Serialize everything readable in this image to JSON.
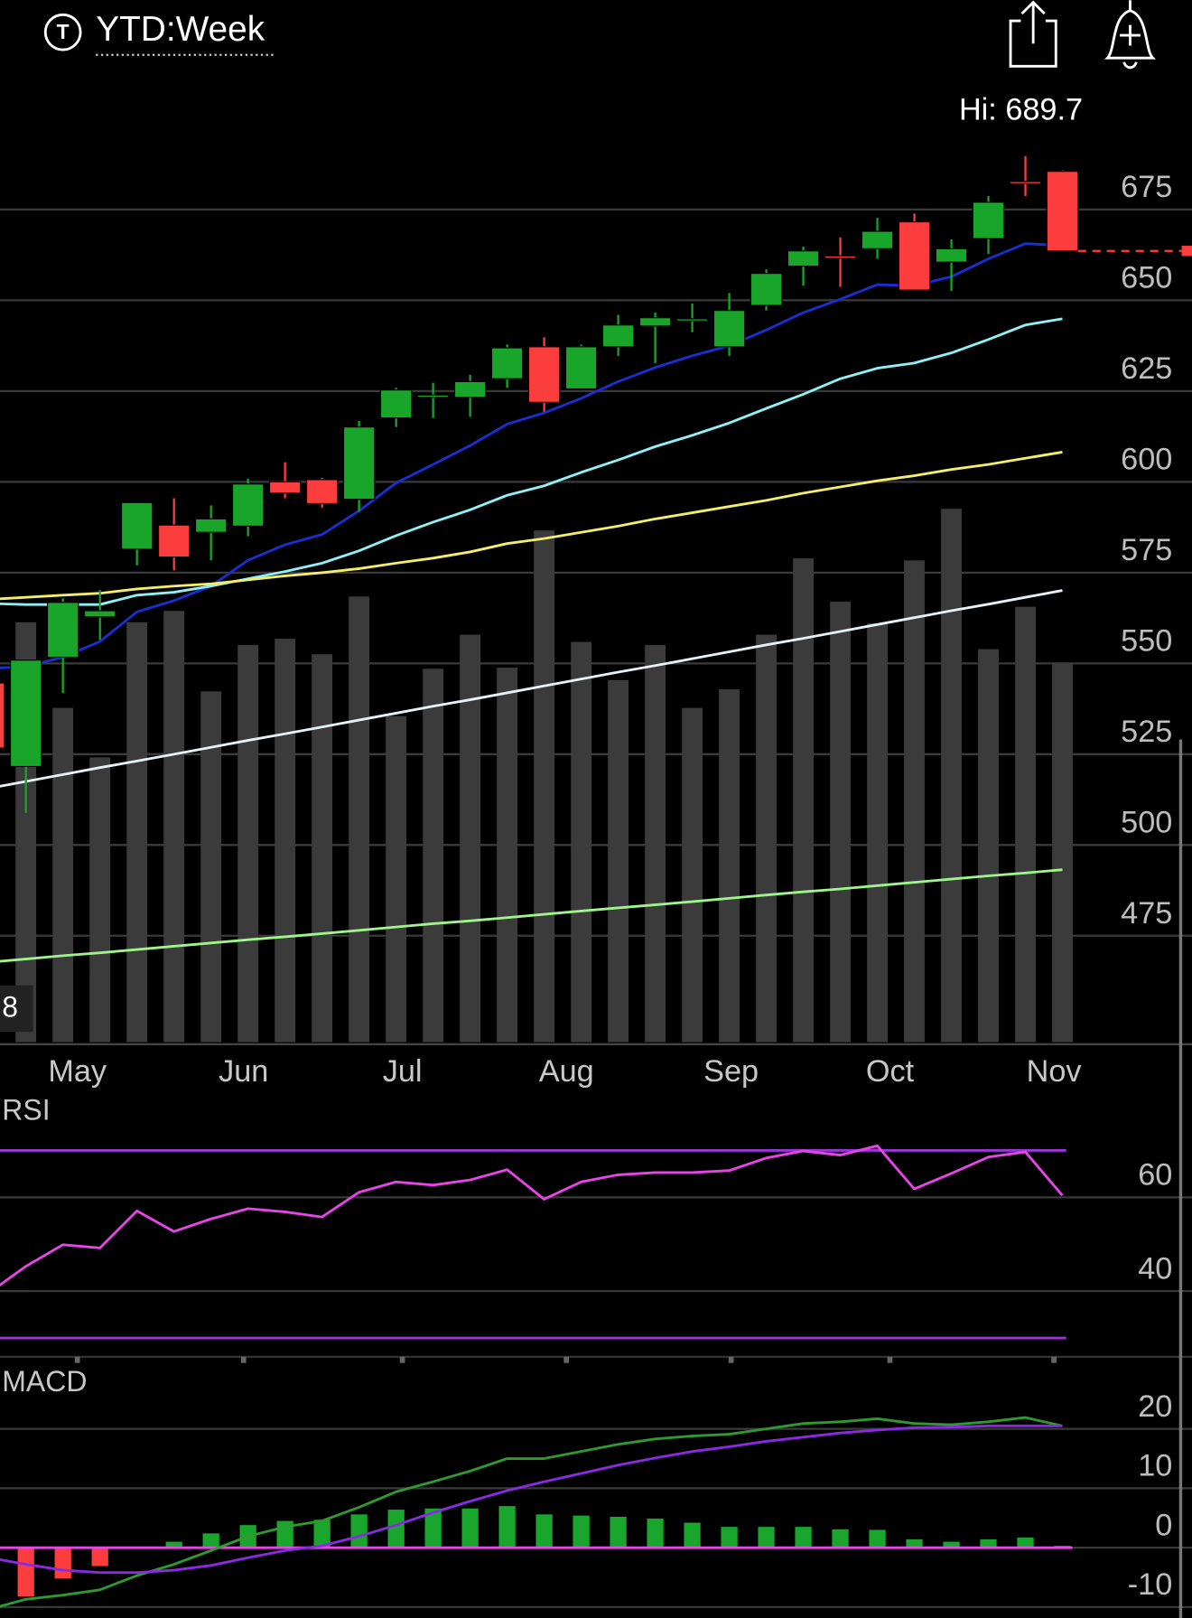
{
  "header": {
    "symbol_icon": "T",
    "title": "YTD:Week"
  },
  "chart_data": [
    {
      "type": "candlestick",
      "x": [
        0,
        1,
        2,
        3,
        4,
        5,
        6,
        7,
        8,
        9,
        10,
        11,
        12,
        13,
        14,
        15,
        16,
        17,
        18,
        19,
        20,
        21,
        22,
        23,
        24,
        25,
        26,
        27,
        28,
        29
      ],
      "xlim": [
        0.3,
        32.5
      ],
      "xticks": [
        {
          "value": 2.39,
          "label": "May"
        },
        {
          "value": 6.88,
          "label": "Jun"
        },
        {
          "value": 11.17,
          "label": "Jul"
        },
        {
          "value": 15.6,
          "label": "Aug"
        },
        {
          "value": 20.05,
          "label": "Sep"
        },
        {
          "value": 24.34,
          "label": "Oct"
        },
        {
          "value": 28.77,
          "label": "Nov"
        }
      ],
      "ylim": [
        445.7,
        709.9
      ],
      "yticks": [
        675,
        650,
        625,
        600,
        575,
        550,
        525,
        500,
        475
      ],
      "grid": true,
      "open": [
        544.6,
        521.6,
        551.7,
        562.8,
        581.5,
        588.1,
        586.1,
        587.8,
        600,
        600.6,
        595.2,
        617.6,
        623.3,
        623.3,
        628.4,
        637.2,
        625.6,
        637.2,
        642.9,
        644.3,
        637.2,
        648.6,
        659.4,
        662.2,
        664.2,
        671.6,
        660.5,
        667,
        682.7,
        685.5
      ],
      "high": [
        548,
        551,
        567.9,
        570.2,
        594.3,
        595.5,
        593.5,
        600.9,
        605.4,
        601.1,
        616.8,
        625.9,
        627.3,
        629.5,
        637.8,
        639.8,
        637.8,
        646,
        646.6,
        649.1,
        652,
        658.5,
        664.8,
        667.3,
        672.7,
        673.9,
        666.8,
        678.7,
        689.7,
        685.8
      ],
      "low": [
        524,
        508.8,
        541.8,
        556.5,
        577,
        575.6,
        578.4,
        585,
        595.5,
        592.9,
        591.8,
        615.1,
        617.6,
        617.9,
        625.9,
        619.3,
        625.6,
        634.7,
        632.7,
        641.2,
        634.7,
        647.2,
        654,
        653.7,
        661.4,
        652.8,
        652.6,
        662.8,
        678.7,
        663.6
      ],
      "close": [
        526.7,
        550.9,
        566.8,
        564.5,
        594.3,
        579.3,
        589.8,
        599.4,
        596.9,
        594,
        615.1,
        625.3,
        623.9,
        627.6,
        636.9,
        621.9,
        637.2,
        643.2,
        645.2,
        644.9,
        647.2,
        657.4,
        663.6,
        661.6,
        669,
        652.8,
        664.2,
        677,
        682.1,
        663.6
      ],
      "up_color": "#18a52a",
      "down_color": "#fc3d3d",
      "hi_label": "Hi: 689.7",
      "edge_label": "8",
      "moving_averages": [
        {
          "color": "#1a2fd0",
          "values": [
            548.6,
            549.1,
            551.7,
            556,
            564.2,
            567.3,
            571.3,
            578.4,
            582.7,
            585.5,
            592,
            599.7,
            604.8,
            610,
            615.9,
            619,
            623,
            627.6,
            631.5,
            634.7,
            637.5,
            641.8,
            646.6,
            650.3,
            654.3,
            654,
            656.5,
            661.4,
            665.6,
            665.1
          ]
        },
        {
          "color": "#8ff0f5",
          "values": [
            566.5,
            566.2,
            566.2,
            566.2,
            568.8,
            569.6,
            571.3,
            573.3,
            575.3,
            577.6,
            581,
            585.2,
            588.9,
            592.3,
            596.3,
            598.9,
            602.6,
            606,
            609.7,
            612.8,
            616.2,
            620.2,
            624.1,
            628.4,
            631.3,
            632.7,
            635.5,
            639.2,
            643.2,
            644.9
          ]
        },
        {
          "color": "#f5ee6a",
          "values": [
            567.6,
            568.2,
            568.8,
            569.3,
            570.5,
            571.3,
            571.9,
            573,
            574.1,
            575,
            576.1,
            577.6,
            579,
            580.7,
            583,
            584.4,
            586.1,
            587.8,
            589.8,
            591.5,
            593.2,
            594.9,
            596.9,
            598.6,
            600.3,
            601.7,
            603.4,
            604.8,
            606.5,
            608.2
          ]
        },
        {
          "color": "#e6f2f5",
          "values": [
            515.6,
            517.5,
            519.4,
            521.3,
            523.1,
            525,
            526.9,
            528.8,
            530.6,
            532.5,
            534.4,
            536.3,
            538.2,
            540,
            541.9,
            543.8,
            545.7,
            547.6,
            549.4,
            551.3,
            553.2,
            555.1,
            556.9,
            558.8,
            560.7,
            562.6,
            564.5,
            566.3,
            568.2,
            570.1
          ]
        },
        {
          "color": "#9ef58a",
          "values": [
            467.7,
            468.6,
            469.5,
            470.3,
            471.2,
            472.1,
            473,
            473.9,
            474.7,
            475.6,
            476.5,
            477.4,
            478.3,
            479.1,
            480,
            480.9,
            481.8,
            482.7,
            483.5,
            484.4,
            485.3,
            486.2,
            487.1,
            487.9,
            488.8,
            489.7,
            490.6,
            491.5,
            492.3,
            493.2
          ]
        }
      ],
      "volume": {
        "color": "#3b3b3b",
        "vlim": [
          0,
          600
        ],
        "values": [
          null,
          407,
          324,
          276,
          407,
          418,
          340,
          385,
          391,
          376,
          432,
          316,
          362,
          395,
          363,
          496,
          388,
          351,
          385,
          324,
          342,
          395,
          469,
          427,
          406,
          467,
          517,
          381,
          422,
          368
        ]
      }
    },
    {
      "type": "line",
      "title": "RSI",
      "x": [
        0,
        1,
        2,
        3,
        4,
        5,
        6,
        7,
        8,
        9,
        10,
        11,
        12,
        13,
        14,
        15,
        16,
        17,
        18,
        19,
        20,
        21,
        22,
        23,
        24,
        25,
        26,
        27,
        28,
        29
      ],
      "xlim": [
        0.3,
        32.5
      ],
      "xticks": [
        2.39,
        6.88,
        11.17,
        15.6,
        20.05,
        24.34,
        28.77
      ],
      "ylim": [
        26,
        81
      ],
      "yticks": [
        60,
        40
      ],
      "grid": true,
      "levels": [
        70,
        30
      ],
      "level_color": "#9a35d8",
      "color": "#e845e8",
      "values": [
        39.6,
        45.3,
        49.9,
        49.2,
        57.1,
        52.7,
        55.4,
        57.6,
        56.9,
        55.8,
        61.1,
        63.3,
        62.6,
        63.7,
        65.9,
        59.6,
        63.3,
        64.8,
        65.3,
        65.3,
        65.7,
        68.4,
        69.9,
        69,
        71,
        61.8,
        65.1,
        68.6,
        69.7,
        60.4
      ]
    },
    {
      "type": "macd",
      "title": "MACD",
      "x": [
        0,
        1,
        2,
        3,
        4,
        5,
        6,
        7,
        8,
        9,
        10,
        11,
        12,
        13,
        14,
        15,
        16,
        17,
        18,
        19,
        20,
        21,
        22,
        23,
        24,
        25,
        26,
        27,
        28,
        29
      ],
      "xlim": [
        0.3,
        32.5
      ],
      "ylim": [
        -11.8,
        30.4
      ],
      "yticks": [
        20,
        10,
        0,
        -10
      ],
      "grid": true,
      "zero_color": "#e845e8",
      "series": [
        {
          "color": "#2f9a2f",
          "values": [
            -10.4,
            -8.7,
            -8,
            -7.1,
            -4.7,
            -2.8,
            -0.5,
            1.9,
            3.5,
            4.5,
            6.8,
            9.4,
            11.1,
            12.9,
            15,
            15,
            16.2,
            17.4,
            18.3,
            18.8,
            19.1,
            20,
            20.9,
            21.2,
            21.7,
            20.9,
            20.7,
            21.2,
            21.9,
            20.5
          ]
        },
        {
          "color": "#8a2be2",
          "values": [
            -1.7,
            -2.8,
            -3.8,
            -4.2,
            -4.2,
            -3.8,
            -3,
            -1.7,
            -0.5,
            0.3,
            1.9,
            3.8,
            5.9,
            7.8,
            9.6,
            11.1,
            12.5,
            13.9,
            15.1,
            16.2,
            17,
            17.9,
            18.6,
            19.3,
            19.8,
            20.2,
            20.3,
            20.5,
            20.5,
            20.5
          ]
        }
      ],
      "histogram": {
        "up_color": "#1aa52c",
        "down_color": "#fc3d3d",
        "values": [
          null,
          -8.2,
          -5.2,
          -3.1,
          0,
          1,
          2.4,
          3.8,
          4.5,
          4.7,
          5.6,
          6.4,
          6.6,
          6.6,
          7,
          5.6,
          5.4,
          5.2,
          4.9,
          4.2,
          3.5,
          3.5,
          3.5,
          3.1,
          3,
          1.4,
          1,
          1.4,
          1.7,
          0.3
        ]
      }
    }
  ]
}
